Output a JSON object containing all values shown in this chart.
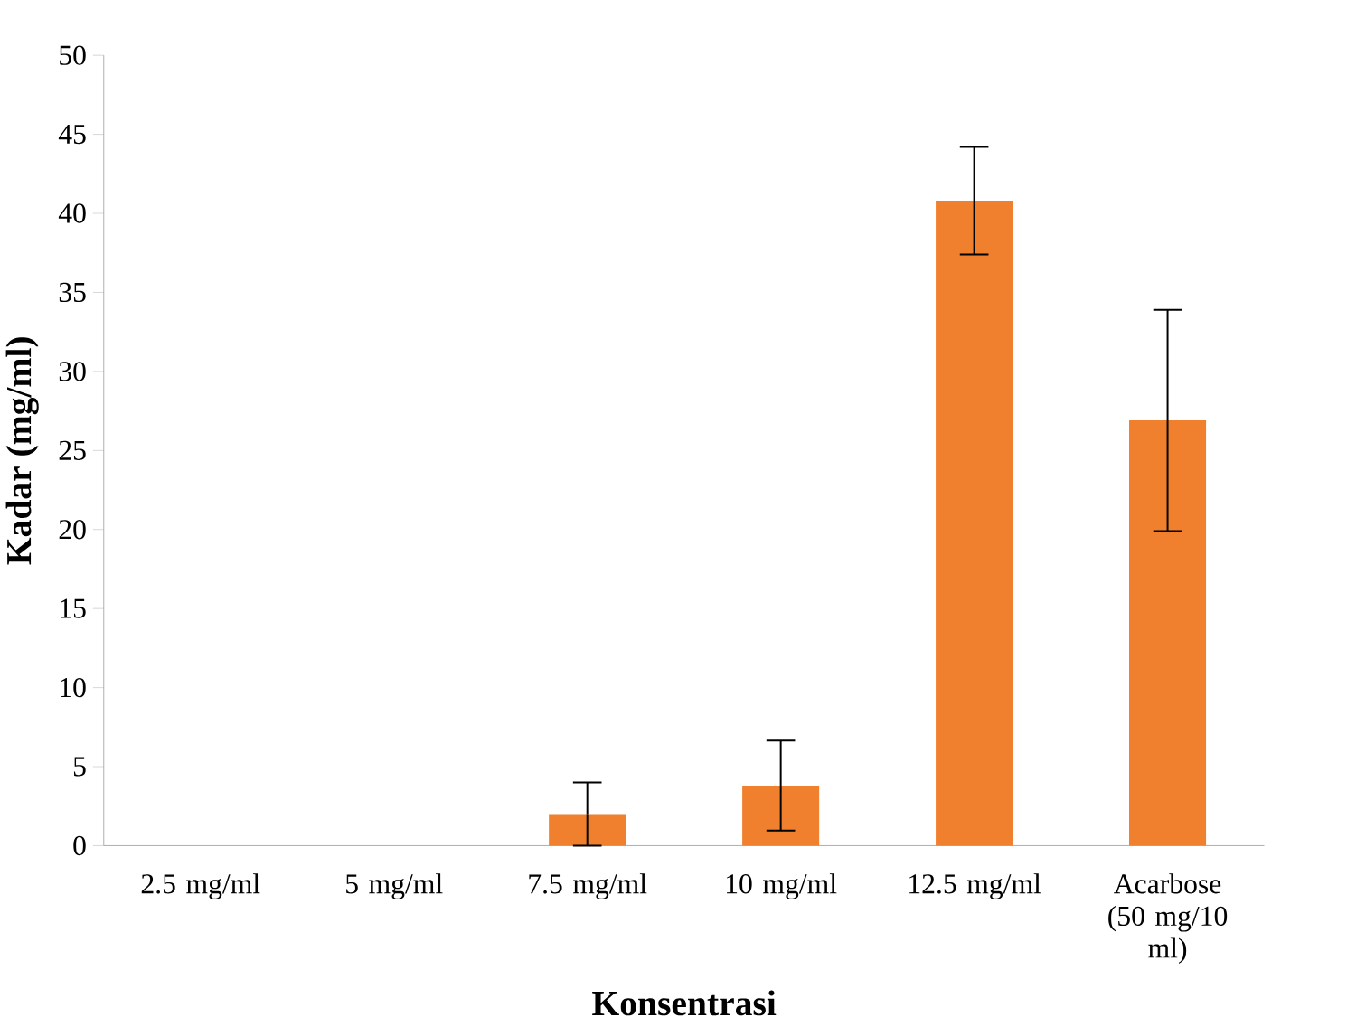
{
  "chart_data": {
    "type": "bar",
    "xlabel": "Konsentrasi",
    "ylabel": "Kadar (mg/ml)",
    "categories": [
      "2.5 mg/ml",
      "5 mg/ml",
      "7.5 mg/ml",
      "10 mg/ml",
      "12.5 mg/ml",
      "Acarbose (50 mg/10 ml)"
    ],
    "values": [
      0,
      0,
      2.0,
      3.8,
      40.8,
      26.9
    ],
    "errors": [
      null,
      null,
      2.0,
      2.85,
      3.4,
      7.0
    ],
    "color": "#f07f2e",
    "ylim": [
      0,
      50
    ],
    "yticks": [
      0,
      5,
      10,
      15,
      20,
      25,
      30,
      35,
      40,
      45,
      50
    ],
    "grid": false
  }
}
